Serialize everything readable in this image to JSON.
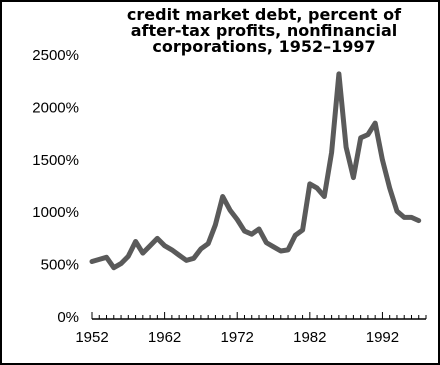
{
  "chart_data": {
    "type": "line",
    "title": [
      "credit market debt, percent of",
      "after-tax profits, nonfinancial",
      "corporations, 1952–1997"
    ],
    "xlabel": "",
    "ylabel": "",
    "xlim": [
      1952,
      1998
    ],
    "ylim": [
      0,
      2500
    ],
    "x_ticks": [
      1952,
      1962,
      1972,
      1982,
      1992
    ],
    "x_tick_labels": [
      "1952",
      "1962",
      "1972",
      "1982",
      "1992"
    ],
    "y_ticks": [
      0,
      500,
      1000,
      1500,
      2000,
      2500
    ],
    "y_tick_labels": [
      "0%",
      "500%",
      "1000%",
      "1500%",
      "2000%",
      "2500%"
    ],
    "grid": false,
    "legend": "none",
    "series_color": "#5a5a5a",
    "series": [
      {
        "x": [
          1952,
          1953,
          1954,
          1955,
          1956,
          1957,
          1958,
          1959,
          1960,
          1961,
          1962,
          1963,
          1964,
          1965,
          1966,
          1967,
          1968,
          1969,
          1970,
          1971,
          1972,
          1973,
          1974,
          1975,
          1976,
          1977,
          1978,
          1979,
          1980,
          1981,
          1982,
          1983,
          1984,
          1985,
          1986,
          1987,
          1988,
          1989,
          1990,
          1991,
          1992,
          1993,
          1994,
          1995,
          1996,
          1997
        ],
        "values": [
          530,
          550,
          570,
          470,
          510,
          580,
          720,
          610,
          680,
          750,
          680,
          640,
          590,
          540,
          560,
          650,
          700,
          880,
          1150,
          1020,
          930,
          820,
          790,
          840,
          710,
          670,
          630,
          640,
          780,
          830,
          1270,
          1230,
          1150,
          1570,
          2320,
          1620,
          1330,
          1710,
          1740,
          1850,
          1500,
          1230,
          1010,
          950,
          950,
          920
        ]
      }
    ]
  }
}
